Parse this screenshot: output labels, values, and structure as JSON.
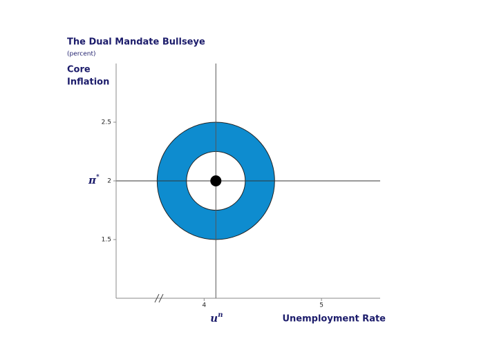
{
  "chart_data": {
    "type": "bullseye",
    "title": "The Dual Mandate Bullseye",
    "subtitle": "(percent)",
    "y_label": [
      "Core",
      "Inflation"
    ],
    "x_label": "Unemployment Rate",
    "xlim": [
      3.25,
      5.5
    ],
    "xticks": [
      4,
      5
    ],
    "ylim": [
      1,
      3
    ],
    "yticks": [
      1.5,
      2,
      2.5
    ],
    "natural_rate": {
      "value": 4.1,
      "symbol": "u",
      "superscript": "n"
    },
    "inflation_target": {
      "value": 2,
      "symbol": "π",
      "superscript": "*"
    },
    "outer_radius": 0.5,
    "inner_radius": 0.25,
    "color": "#0e8ccf"
  }
}
